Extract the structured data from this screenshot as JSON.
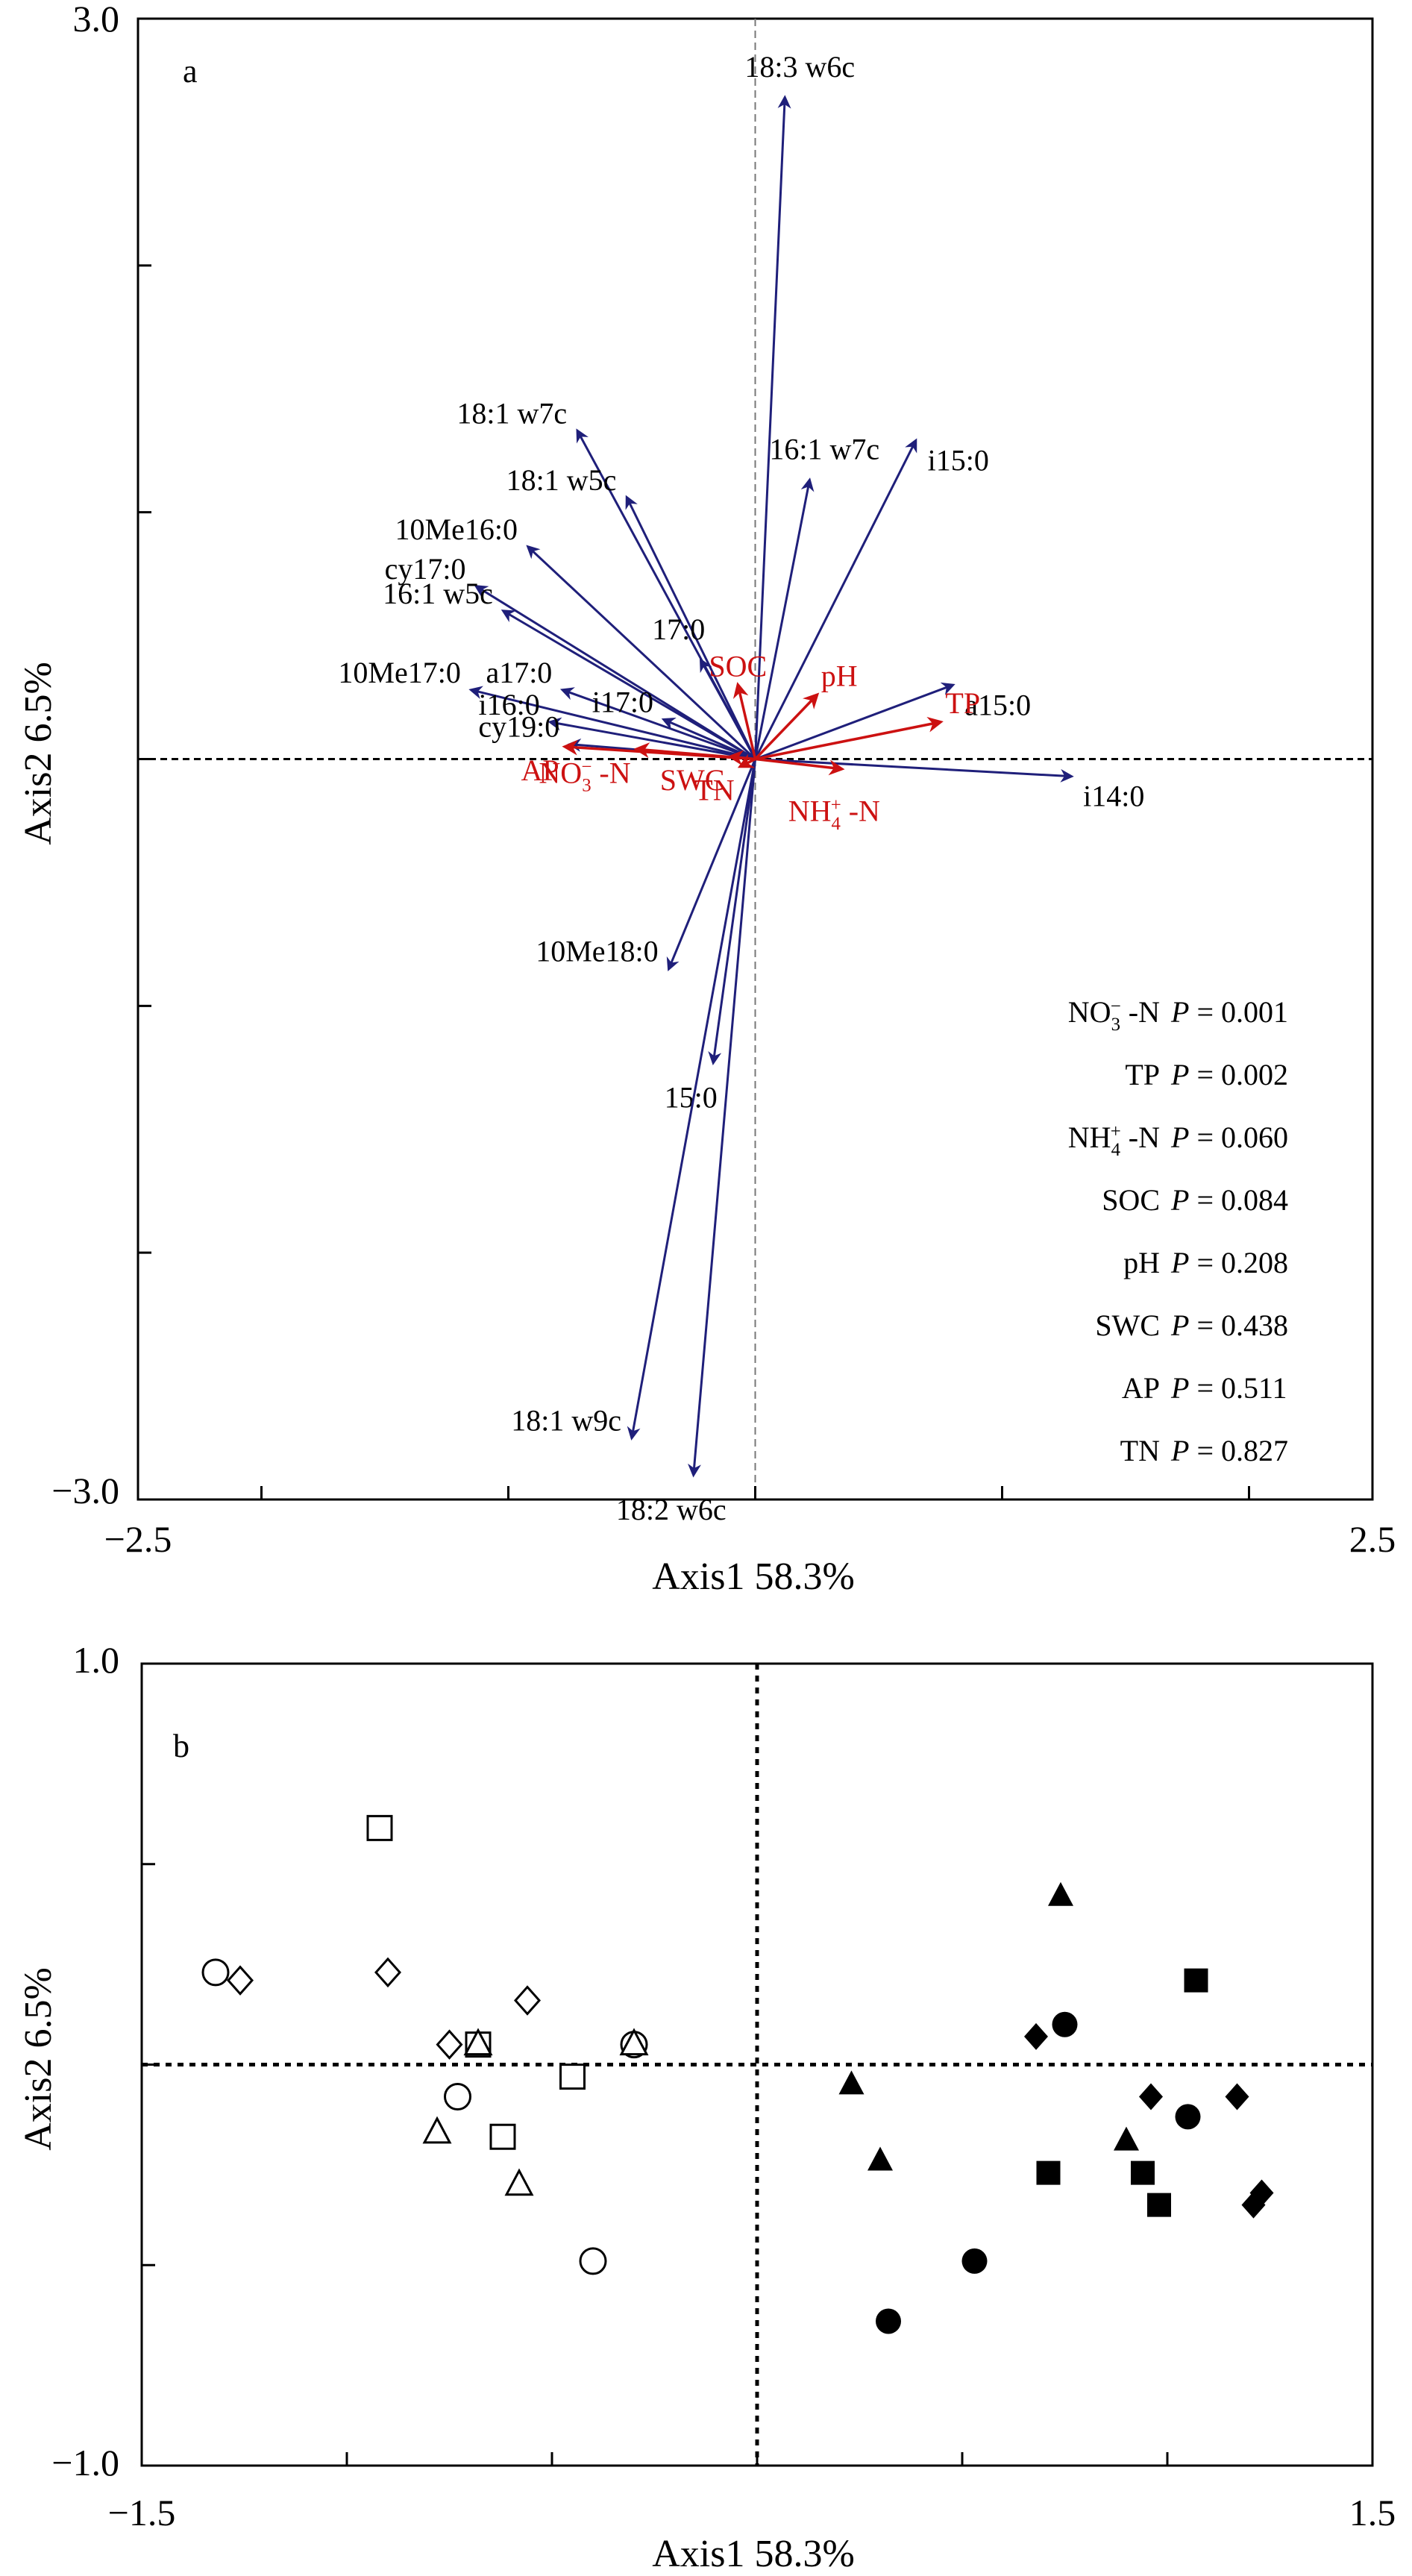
{
  "chart_data": [
    {
      "type": "biplot",
      "panel_label": "a",
      "xlabel": "Axis1 58.3%",
      "ylabel": "Axis2 6.5%",
      "xlim": [
        -2.5,
        2.5
      ],
      "ylim": [
        -3.0,
        3.0
      ],
      "x_tick_labels": [
        "−2.5",
        "2.5"
      ],
      "y_tick_labels": [
        "3.0",
        "−3.0"
      ],
      "arrow_color_species": "#1f1f7a",
      "arrow_color_env": "#cc1111",
      "species_arrows": [
        {
          "label": "18:3 w6c",
          "x": 0.12,
          "y": 2.68
        },
        {
          "label": "18:1 w7c",
          "x": -0.72,
          "y": 1.33
        },
        {
          "label": "16:1 w7c",
          "x": 0.22,
          "y": 1.13
        },
        {
          "label": "i15:0",
          "x": 0.65,
          "y": 1.29
        },
        {
          "label": "18:1 w5c",
          "x": -0.52,
          "y": 1.06
        },
        {
          "label": "10Me16:0",
          "x": -0.92,
          "y": 0.86
        },
        {
          "label": "cy17:0",
          "x": -1.13,
          "y": 0.7
        },
        {
          "label": "16:1 w5c",
          "x": -1.02,
          "y": 0.6
        },
        {
          "label": "17:0",
          "x": -0.22,
          "y": 0.4
        },
        {
          "label": "a17:0",
          "x": -0.78,
          "y": 0.28
        },
        {
          "label": "10Me17:0",
          "x": -1.15,
          "y": 0.28
        },
        {
          "label": "i17:0",
          "x": -0.37,
          "y": 0.16
        },
        {
          "label": "a15:0",
          "x": 0.8,
          "y": 0.3
        },
        {
          "label": "i16:0",
          "x": -0.83,
          "y": 0.15
        },
        {
          "label": "cy19:0",
          "x": -0.75,
          "y": 0.06
        },
        {
          "label": "i14:0",
          "x": 1.28,
          "y": -0.07
        },
        {
          "label": "10Me18:0",
          "x": -0.35,
          "y": -0.85
        },
        {
          "label": "15:0",
          "x": -0.17,
          "y": -1.23
        },
        {
          "label": "18:1 w9c",
          "x": -0.5,
          "y": -2.75
        },
        {
          "label": "18:2 w6c",
          "x": -0.25,
          "y": -2.9
        }
      ],
      "env_arrows": [
        {
          "label": "SOC",
          "x": -0.07,
          "y": 0.3
        },
        {
          "label": "pH",
          "x": 0.25,
          "y": 0.26
        },
        {
          "label": "TP",
          "x": 0.75,
          "y": 0.15
        },
        {
          "label": "AP",
          "x": -0.77,
          "y": 0.05
        },
        {
          "label": "SWC",
          "x": -0.1,
          "y": 0.01
        },
        {
          "label": "NO3−-N",
          "x": -0.48,
          "y": 0.04
        },
        {
          "label": "TN",
          "x": -0.06,
          "y": -0.03
        },
        {
          "label": "NH4+-N",
          "x": 0.35,
          "y": -0.04
        }
      ],
      "significance": [
        {
          "var": "NO3−-N",
          "p": "P = 0.001"
        },
        {
          "var": "TP",
          "p": "P = 0.002"
        },
        {
          "var": "NH4+-N",
          "p": "P = 0.060"
        },
        {
          "var": "SOC",
          "p": "P = 0.084"
        },
        {
          "var": "pH",
          "p": "P = 0.208"
        },
        {
          "var": "SWC",
          "p": "P = 0.438"
        },
        {
          "var": "AP",
          "p": "P = 0.511"
        },
        {
          "var": "TN",
          "p": "P = 0.827"
        }
      ]
    },
    {
      "type": "scatter",
      "panel_label": "b",
      "xlabel": "Axis1 58.3%",
      "ylabel": "Axis2 6.5%",
      "xlim": [
        -1.5,
        1.5
      ],
      "ylim": [
        -1.0,
        1.0
      ],
      "x_tick_labels": [
        "−1.5",
        "1.5"
      ],
      "y_tick_labels": [
        "1.0",
        "−1.0"
      ],
      "points": [
        {
          "x": -1.32,
          "y": 0.23,
          "shape": "circle",
          "filled": false
        },
        {
          "x": -1.26,
          "y": 0.21,
          "shape": "diamond",
          "filled": false
        },
        {
          "x": -0.92,
          "y": 0.59,
          "shape": "square",
          "filled": false
        },
        {
          "x": -0.9,
          "y": 0.23,
          "shape": "diamond",
          "filled": false
        },
        {
          "x": -0.75,
          "y": 0.05,
          "shape": "diamond",
          "filled": false
        },
        {
          "x": -0.68,
          "y": 0.05,
          "shape": "square",
          "filled": false
        },
        {
          "x": -0.68,
          "y": 0.05,
          "shape": "triangle",
          "filled": false
        },
        {
          "x": -0.56,
          "y": 0.16,
          "shape": "diamond",
          "filled": false
        },
        {
          "x": -0.73,
          "y": -0.08,
          "shape": "circle",
          "filled": false
        },
        {
          "x": -0.78,
          "y": -0.17,
          "shape": "triangle",
          "filled": false
        },
        {
          "x": -0.62,
          "y": -0.18,
          "shape": "square",
          "filled": false
        },
        {
          "x": -0.58,
          "y": -0.3,
          "shape": "triangle",
          "filled": false
        },
        {
          "x": -0.45,
          "y": -0.03,
          "shape": "square",
          "filled": false
        },
        {
          "x": -0.4,
          "y": -0.49,
          "shape": "circle",
          "filled": false
        },
        {
          "x": -0.3,
          "y": 0.05,
          "shape": "circle",
          "filled": false
        },
        {
          "x": -0.3,
          "y": 0.05,
          "shape": "triangle",
          "filled": false
        },
        {
          "x": 0.74,
          "y": 0.42,
          "shape": "triangle",
          "filled": true
        },
        {
          "x": 0.23,
          "y": -0.05,
          "shape": "triangle",
          "filled": true
        },
        {
          "x": 0.3,
          "y": -0.24,
          "shape": "triangle",
          "filled": true
        },
        {
          "x": 0.75,
          "y": 0.1,
          "shape": "circle",
          "filled": true
        },
        {
          "x": 0.32,
          "y": -0.64,
          "shape": "circle",
          "filled": true
        },
        {
          "x": 0.53,
          "y": -0.49,
          "shape": "circle",
          "filled": true
        },
        {
          "x": 0.9,
          "y": -0.19,
          "shape": "triangle",
          "filled": true
        },
        {
          "x": 0.68,
          "y": 0.07,
          "shape": "diamond",
          "filled": true
        },
        {
          "x": 1.05,
          "y": -0.13,
          "shape": "circle",
          "filled": true
        },
        {
          "x": 0.71,
          "y": -0.27,
          "shape": "square",
          "filled": true
        },
        {
          "x": 1.07,
          "y": 0.21,
          "shape": "square",
          "filled": true
        },
        {
          "x": 0.94,
          "y": -0.27,
          "shape": "square",
          "filled": true
        },
        {
          "x": 0.98,
          "y": -0.35,
          "shape": "square",
          "filled": true
        },
        {
          "x": 0.96,
          "y": -0.08,
          "shape": "diamond",
          "filled": true
        },
        {
          "x": 1.17,
          "y": -0.08,
          "shape": "diamond",
          "filled": true
        },
        {
          "x": 1.23,
          "y": -0.32,
          "shape": "diamond",
          "filled": true
        },
        {
          "x": 1.21,
          "y": -0.35,
          "shape": "diamond",
          "filled": true
        }
      ]
    }
  ]
}
